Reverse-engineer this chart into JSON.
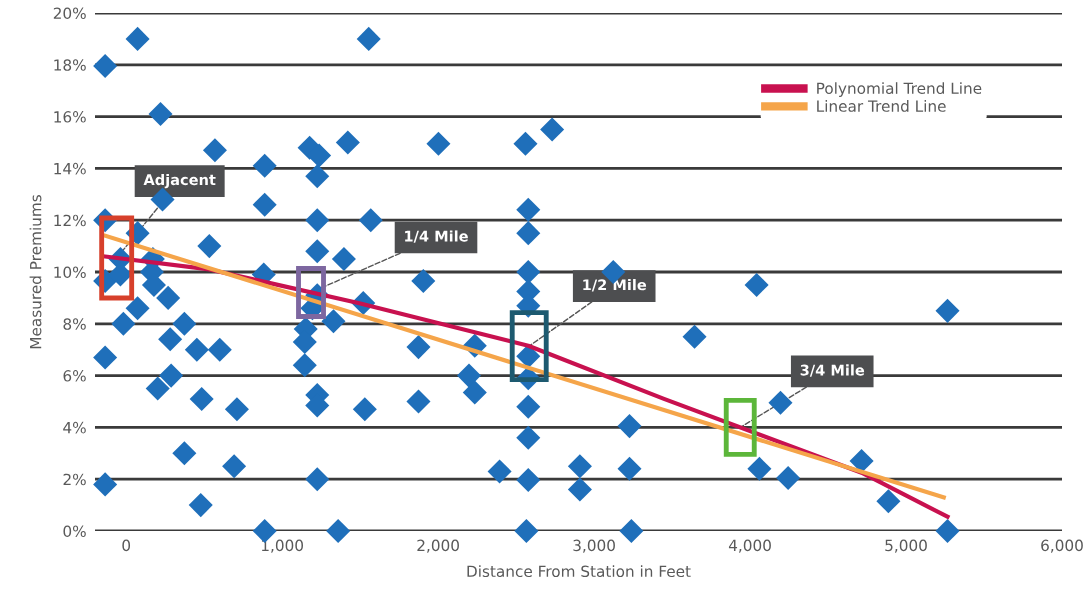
{
  "chart_data": {
    "type": "scatter",
    "xlabel": "Distance From Station in Feet",
    "ylabel": "Measured Premiums",
    "xlim": [
      -200,
      6000
    ],
    "xticks": [
      {
        "value": 0,
        "label": "0"
      },
      {
        "value": 1000,
        "label": "1,000"
      },
      {
        "value": 2000,
        "label": "2,000"
      },
      {
        "value": 3000,
        "label": "3,000"
      },
      {
        "value": 4000,
        "label": "4,000"
      },
      {
        "value": 5000,
        "label": "5,000"
      },
      {
        "value": 6000,
        "label": "6,000"
      }
    ],
    "ylim": [
      0,
      20
    ],
    "yticks": [
      {
        "value": 0,
        "label": "0%"
      },
      {
        "value": 2,
        "label": "2%"
      },
      {
        "value": 4,
        "label": "4%"
      },
      {
        "value": 6,
        "label": "6%"
      },
      {
        "value": 8,
        "label": "8%"
      },
      {
        "value": 10,
        "label": "10%"
      },
      {
        "value": 12,
        "label": "12%"
      },
      {
        "value": 14,
        "label": "14%"
      },
      {
        "value": 16,
        "label": "16%"
      },
      {
        "value": 18,
        "label": "18%"
      },
      {
        "value": 20,
        "label": "20%"
      }
    ],
    "grid": "y",
    "legend": "top right",
    "series": [
      {
        "color": "#1f6fba",
        "marker": "diamond",
        "x": [
          73,
          -135,
          220,
          569,
          888,
          1176,
          1237,
          1421,
          1225,
          233,
          888,
          -135,
          1225,
          73,
          533,
          1225,
          1396,
          -37,
          171,
          165,
          -135,
          -37,
          882,
          178,
          269,
          1225,
          1194,
          1520,
          73,
          1329,
          -18,
          373,
          1151,
          282,
          1145,
          453,
          600,
          -135,
          1145,
          288,
          202,
          1225,
          1225,
          484,
          710,
          1530,
          373,
          692,
          -135,
          1225,
          478,
          888,
          1359,
          1555,
          2002,
          2560,
          2731,
          1568,
          2578,
          2578,
          2578,
          3123,
          1905,
          2578,
          2578,
          1874,
          2235,
          2578,
          2198,
          2578,
          2235,
          1874,
          2578,
          3227,
          2578,
          2394,
          2578,
          2909,
          2909,
          3227,
          2566,
          3239,
          4042,
          3644,
          5266,
          4195,
          4060,
          4244,
          4715,
          4887,
          5266
        ],
        "values": [
          19.0,
          17.95,
          16.1,
          14.7,
          14.1,
          14.8,
          14.5,
          15.0,
          13.7,
          12.8,
          12.6,
          12.0,
          12.0,
          11.5,
          11.0,
          10.8,
          10.5,
          10.5,
          10.5,
          10.0,
          9.65,
          9.9,
          9.9,
          9.5,
          9.0,
          9.1,
          8.6,
          8.8,
          8.6,
          8.1,
          8.0,
          8.0,
          7.8,
          7.4,
          7.3,
          7.0,
          7.0,
          6.7,
          6.4,
          6.0,
          5.5,
          5.25,
          4.85,
          5.1,
          4.7,
          4.7,
          3.0,
          2.5,
          1.8,
          2.0,
          1.0,
          0.0,
          0.0,
          19.0,
          14.95,
          14.95,
          15.5,
          12.0,
          12.4,
          11.5,
          10.0,
          10.0,
          9.65,
          9.25,
          8.7,
          7.1,
          7.15,
          6.75,
          6.0,
          5.9,
          5.35,
          5.0,
          4.8,
          4.05,
          3.6,
          2.3,
          1.97,
          2.5,
          1.6,
          2.4,
          0.0,
          0.0,
          9.5,
          7.5,
          8.5,
          4.95,
          2.4,
          2.05,
          2.7,
          1.15,
          0.0
        ]
      },
      {
        "type": "line",
        "name": "Polynomial Trend Line",
        "color": "#c8114f",
        "x": [
          -135,
          533,
          1488,
          2578,
          3448,
          4715,
          5266
        ],
        "values": [
          10.6,
          10.1,
          8.8,
          7.15,
          5.1,
          2.25,
          0.55
        ]
      },
      {
        "type": "line",
        "name": "Linear Trend Line",
        "color": "#f5a54a",
        "x": [
          -135,
          5242
        ],
        "values": [
          11.4,
          1.3
        ]
      }
    ],
    "annotations": [
      {
        "text": "Adjacent",
        "x": -61,
        "y": 10.54
      },
      {
        "text": "1/4 Mile",
        "x": 1185,
        "y": 9.21
      },
      {
        "text": "1/2 Mile",
        "x": 2584,
        "y": 7.14
      },
      {
        "text": "3/4 Mile",
        "x": 3937,
        "y": 4.0
      }
    ]
  }
}
